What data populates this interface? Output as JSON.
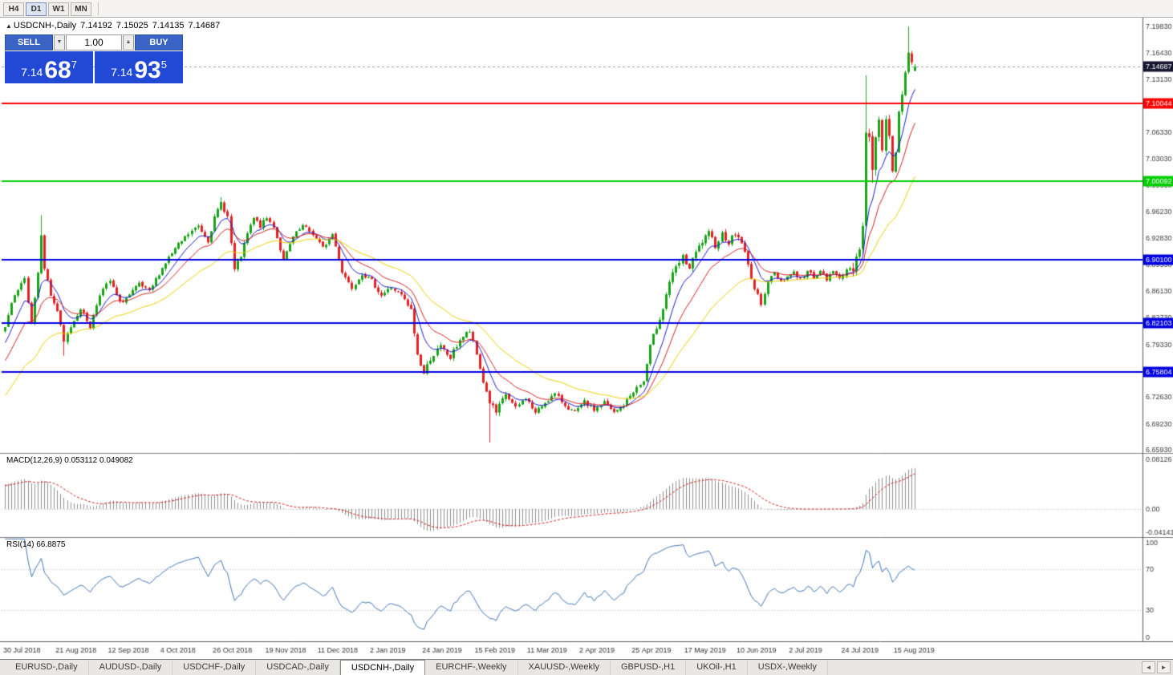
{
  "toolbar": {
    "timeframes": [
      {
        "label": "H4",
        "active": false
      },
      {
        "label": "D1",
        "active": true
      },
      {
        "label": "W1",
        "active": false
      },
      {
        "label": "MN",
        "active": false
      }
    ]
  },
  "header": {
    "collapse": "▲",
    "symbol": "USDCNH-,Daily",
    "open": "7.14192",
    "high": "7.15025",
    "low": "7.14135",
    "close": "7.14687"
  },
  "trade_panel": {
    "sell": "SELL",
    "buy": "BUY",
    "volume": "1.00",
    "down_arrow": "▼",
    "up_arrow": "▲",
    "sell_price": {
      "base": "7.14",
      "pips": "68",
      "pt": "7"
    },
    "buy_price": {
      "base": "7.14",
      "pips": "93",
      "pt": "5"
    }
  },
  "price_axis": {
    "ticks": [
      "7.19830",
      "7.16430",
      "7.13130",
      "7.09730",
      "7.06330",
      "7.03030",
      "6.99630",
      "6.96230",
      "6.92830",
      "6.89530",
      "6.86130",
      "6.82730",
      "6.79330",
      "6.75930",
      "6.72630",
      "6.69230",
      "6.65930"
    ]
  },
  "hlines": [
    {
      "label": "7.10044",
      "price": 7.10044,
      "color": "#FF0000"
    },
    {
      "label": "7.00092",
      "price": 7.00092,
      "color": "#00CE00"
    },
    {
      "label": "6.90100",
      "price": 6.901,
      "color": "#0000E0"
    },
    {
      "label": "6.82103",
      "price": 6.82103,
      "color": "#0000E0"
    },
    {
      "label": "6.75804",
      "price": 6.75804,
      "color": "#0000E0"
    }
  ],
  "bid_marker": {
    "label": "7.14687",
    "price": 7.14687,
    "color": "#15152E"
  },
  "chart_data": {
    "type": "candlestick",
    "symbol": "USDCNH",
    "timeframe": "Daily",
    "visible_candles": 279,
    "ohlc_last": {
      "open": 7.14192,
      "high": 7.15025,
      "low": 7.14135,
      "close": 7.14687
    },
    "price_anchors": [
      [
        -30,
        6.62
      ],
      [
        -20,
        6.7
      ],
      [
        -10,
        6.76
      ],
      [
        0,
        6.815
      ],
      [
        2,
        6.845
      ],
      [
        4,
        6.862
      ],
      [
        6,
        6.876
      ],
      [
        8,
        6.822
      ],
      [
        10,
        6.885
      ],
      [
        11,
        6.935
      ],
      [
        12,
        6.892
      ],
      [
        14,
        6.856
      ],
      [
        16,
        6.836
      ],
      [
        18,
        6.796
      ],
      [
        20,
        6.816
      ],
      [
        23,
        6.84
      ],
      [
        26,
        6.816
      ],
      [
        29,
        6.858
      ],
      [
        32,
        6.874
      ],
      [
        35,
        6.846
      ],
      [
        38,
        6.856
      ],
      [
        41,
        6.87
      ],
      [
        44,
        6.86
      ],
      [
        47,
        6.884
      ],
      [
        50,
        6.904
      ],
      [
        53,
        6.92
      ],
      [
        56,
        6.934
      ],
      [
        59,
        6.944
      ],
      [
        62,
        6.926
      ],
      [
        64,
        6.954
      ],
      [
        66,
        6.974
      ],
      [
        68,
        6.956
      ],
      [
        70,
        6.888
      ],
      [
        72,
        6.906
      ],
      [
        74,
        6.934
      ],
      [
        76,
        6.954
      ],
      [
        78,
        6.944
      ],
      [
        80,
        6.954
      ],
      [
        82,
        6.944
      ],
      [
        85,
        6.9
      ],
      [
        88,
        6.93
      ],
      [
        91,
        6.944
      ],
      [
        94,
        6.934
      ],
      [
        97,
        6.916
      ],
      [
        100,
        6.934
      ],
      [
        103,
        6.886
      ],
      [
        106,
        6.866
      ],
      [
        109,
        6.884
      ],
      [
        112,
        6.874
      ],
      [
        115,
        6.856
      ],
      [
        118,
        6.866
      ],
      [
        121,
        6.856
      ],
      [
        124,
        6.836
      ],
      [
        126,
        6.78
      ],
      [
        128,
        6.756
      ],
      [
        130,
        6.776
      ],
      [
        133,
        6.79
      ],
      [
        136,
        6.776
      ],
      [
        139,
        6.8
      ],
      [
        142,
        6.81
      ],
      [
        144,
        6.78
      ],
      [
        146,
        6.746
      ],
      [
        148,
        6.72
      ],
      [
        150,
        6.706
      ],
      [
        153,
        6.73
      ],
      [
        156,
        6.712
      ],
      [
        159,
        6.726
      ],
      [
        162,
        6.706
      ],
      [
        165,
        6.72
      ],
      [
        168,
        6.73
      ],
      [
        171,
        6.716
      ],
      [
        174,
        6.706
      ],
      [
        177,
        6.72
      ],
      [
        180,
        6.71
      ],
      [
        183,
        6.72
      ],
      [
        186,
        6.706
      ],
      [
        189,
        6.716
      ],
      [
        192,
        6.734
      ],
      [
        195,
        6.746
      ],
      [
        197,
        6.79
      ],
      [
        199,
        6.816
      ],
      [
        201,
        6.84
      ],
      [
        203,
        6.874
      ],
      [
        205,
        6.89
      ],
      [
        207,
        6.904
      ],
      [
        209,
        6.89
      ],
      [
        211,
        6.91
      ],
      [
        213,
        6.924
      ],
      [
        215,
        6.934
      ],
      [
        217,
        6.92
      ],
      [
        219,
        6.934
      ],
      [
        221,
        6.924
      ],
      [
        223,
        6.934
      ],
      [
        225,
        6.924
      ],
      [
        227,
        6.894
      ],
      [
        229,
        6.864
      ],
      [
        231,
        6.846
      ],
      [
        233,
        6.874
      ],
      [
        235,
        6.884
      ],
      [
        237,
        6.874
      ],
      [
        239,
        6.88
      ],
      [
        241,
        6.886
      ],
      [
        243,
        6.876
      ],
      [
        245,
        6.886
      ],
      [
        247,
        6.88
      ],
      [
        249,
        6.886
      ],
      [
        251,
        6.876
      ],
      [
        253,
        6.886
      ],
      [
        255,
        6.88
      ],
      [
        257,
        6.886
      ],
      [
        259,
        6.89
      ],
      [
        261,
        6.92
      ],
      [
        262,
        6.944
      ],
      [
        263,
        7.064
      ],
      [
        264,
        7.054
      ],
      [
        265,
        7.02
      ],
      [
        266,
        7.054
      ],
      [
        267,
        7.084
      ],
      [
        268,
        7.044
      ],
      [
        269,
        7.084
      ],
      [
        270,
        7.054
      ],
      [
        271,
        7.02
      ],
      [
        272,
        7.044
      ],
      [
        273,
        7.084
      ],
      [
        274,
        7.106
      ],
      [
        275,
        7.14
      ],
      [
        276,
        7.164
      ],
      [
        277,
        7.15
      ],
      [
        278,
        7.14687
      ]
    ],
    "special_highs": {
      "11": 6.958,
      "66": 6.981,
      "263": 7.136,
      "276": 7.1983
    },
    "special_lows": {
      "18": 6.779,
      "148": 6.6685,
      "265": 6.999
    },
    "moving_averages": [
      {
        "period": 8,
        "color": "#1b1bd0"
      },
      {
        "period": 16,
        "color": "#d42020"
      },
      {
        "period": 36,
        "color": "#ecd000"
      }
    ],
    "indicators": [
      {
        "name": "MACD",
        "params": [
          12,
          26,
          9
        ],
        "current": [
          0.053112,
          0.049082
        ]
      },
      {
        "name": "RSI",
        "params": [
          14
        ],
        "current": 66.8875
      }
    ],
    "colors": {
      "up": "#18a318",
      "down": "#e32222",
      "histogram": "#8f8f8f",
      "signal": "#d42020",
      "rsi": "#3f76b8"
    }
  },
  "macd_panel": {
    "label": "MACD(12,26,9) 0.053112 0.049082",
    "scale_max": 0.08126,
    "scale_min": -0.04141,
    "axis_labels": [
      "0.08126",
      "0.00",
      "-0.04141"
    ]
  },
  "rsi_panel": {
    "label": "RSI(14) 66.8875",
    "levels": [
      100,
      70,
      30,
      0
    ]
  },
  "date_axis": {
    "labels": [
      "30 Jul 2018",
      "21 Aug 2018",
      "12 Sep 2018",
      "4 Oct 2018",
      "26 Oct 2018",
      "19 Nov 2018",
      "11 Dec 2018",
      "2 Jan 2019",
      "24 Jan 2019",
      "15 Feb 2019",
      "11 Mar 2019",
      "2 Apr 2019",
      "25 Apr 2019",
      "17 May 2019",
      "10 Jun 2019",
      "2 Jul 2019",
      "24 Jul 2019",
      "15 Aug 2019"
    ],
    "candles_per_label": 16
  },
  "tabs": {
    "items": [
      "EURUSD-,Daily",
      "AUDUSD-,Daily",
      "USDCHF-,Daily",
      "USDCAD-,Daily",
      "USDCNH-,Daily",
      "EURCHF-,Weekly",
      "XAUUSD-,Weekly",
      "GBPUSD-,H1",
      "UKOil-,H1",
      "USDX-,Weekly"
    ],
    "active_index": 4,
    "left_arrow": "◄",
    "right_arrow": "►"
  }
}
